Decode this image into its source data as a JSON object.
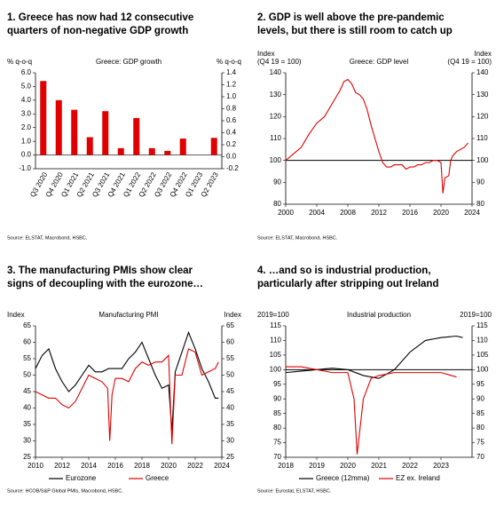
{
  "chart_data": [
    {
      "type": "bar",
      "title": [
        "1. Greece has now had 12 consecutive",
        "quarters of non-negative GDP growth"
      ],
      "plot_label": "Greece: GDP growth",
      "y_label": [
        "% q-o-q"
      ],
      "y2_label": [
        "% q-o-q"
      ],
      "categories": [
        "Q3 2020",
        "Q4 2020",
        "Q1 2021",
        "Q2 2021",
        "Q3 2021",
        "Q4 2021",
        "Q1 2022",
        "Q2 2022",
        "Q3 2022",
        "Q4 2022",
        "Q1 2023",
        "Q2 2023"
      ],
      "values": [
        5.4,
        4.0,
        3.3,
        1.3,
        3.2,
        0.5,
        2.7,
        0.5,
        0.3,
        1.2,
        0.0,
        1.25
      ],
      "color": "#e00000",
      "ylim": [
        -1,
        6
      ],
      "yticks": [
        {
          "value": -1,
          "label": "-1.0"
        },
        {
          "value": 0,
          "label": "0.0"
        },
        {
          "value": 1,
          "label": "1.0"
        },
        {
          "value": 2,
          "label": "2.0"
        },
        {
          "value": 3,
          "label": "3.0"
        },
        {
          "value": 4,
          "label": "4.0"
        },
        {
          "value": 5,
          "label": "5.0"
        },
        {
          "value": 6,
          "label": "6.0"
        }
      ],
      "y2lim": [
        -0.2,
        1.4
      ],
      "y2ticks": [
        -0.2,
        {
          "value": 0,
          "label": "0.0"
        },
        0.2,
        0.4,
        0.6,
        0.8,
        {
          "value": 1,
          "label": "1.0"
        },
        1.2,
        1.4
      ],
      "source": "Source: ELSTAT, Macrobond, HSBC."
    },
    {
      "type": "line",
      "title": [
        "2. GDP is well above the pre-pandemic",
        "levels, but there is still room to catch up"
      ],
      "plot_label": "Greece: GDP level",
      "y_label": [
        "Index",
        "(Q4 19 = 100)"
      ],
      "y2_label": [
        "Index",
        "(Q4 19 = 100)"
      ],
      "series": [
        {
          "color": "#e00000",
          "x": [
            2000,
            2001,
            2002,
            2003,
            2004,
            2005,
            2006,
            2007,
            2007.5,
            2008,
            2008.5,
            2009,
            2009.5,
            2010,
            2010.5,
            2011,
            2011.5,
            2012,
            2012.5,
            2013,
            2013.5,
            2014,
            2014.5,
            2015,
            2015.5,
            2016,
            2016.5,
            2017,
            2017.5,
            2018,
            2018.5,
            2019,
            2019.5,
            2020,
            2020.25,
            2020.5,
            2021,
            2021.25,
            2021.5,
            2022,
            2022.5,
            2023,
            2023.5
          ],
          "values": [
            100,
            103,
            106,
            112,
            117,
            120,
            126,
            132,
            136,
            137,
            135,
            131,
            130,
            128,
            123,
            116,
            110,
            104,
            99,
            97,
            97,
            98,
            98,
            98,
            96,
            97,
            97,
            98,
            98,
            99,
            99,
            100,
            100,
            99,
            85,
            92,
            93,
            100,
            102,
            104,
            105,
            106,
            108
          ]
        }
      ],
      "ref_line": 100,
      "xlim": [
        2000,
        2024
      ],
      "xticks": [
        2000,
        2004,
        2008,
        2012,
        2016,
        2020,
        2024
      ],
      "ylim": [
        80,
        140
      ],
      "yticks": [
        80,
        90,
        100,
        110,
        120,
        130,
        140
      ],
      "y2lim": [
        80,
        140
      ],
      "y2ticks": [
        80,
        90,
        100,
        110,
        120,
        130,
        140
      ],
      "source": "Source: ELSTAT, Macrobond, HSBC."
    },
    {
      "type": "line",
      "title": [
        "3. The manufacturing PMIs show clear",
        "signs of decoupling with the eurozone…"
      ],
      "plot_label": "Manufacturing PMI",
      "y_label": [
        "Index"
      ],
      "y2_label": [
        "Index"
      ],
      "series": [
        {
          "name": "Eurozone",
          "color": "#000000",
          "x": [
            2010,
            2010.5,
            2011,
            2011.5,
            2012,
            2012.5,
            2013,
            2013.5,
            2014,
            2014.5,
            2015,
            2015.5,
            2016,
            2016.5,
            2017,
            2017.5,
            2018,
            2018.5,
            2019,
            2019.5,
            2020,
            2020.25,
            2020.5,
            2021,
            2021.5,
            2022,
            2022.5,
            2023,
            2023.5,
            2023.75
          ],
          "values": [
            52,
            56,
            58,
            52,
            48,
            45,
            47,
            50,
            53,
            51,
            51,
            52,
            52,
            52,
            55,
            57,
            60,
            55,
            50,
            46,
            47,
            33,
            51,
            57,
            63,
            58,
            52,
            48,
            43,
            43
          ]
        },
        {
          "name": "Greece",
          "color": "#e00000",
          "x": [
            2010,
            2010.5,
            2011,
            2011.5,
            2012,
            2012.5,
            2013,
            2013.5,
            2014,
            2014.5,
            2015,
            2015.42,
            2015.58,
            2015.75,
            2016,
            2016.5,
            2017,
            2017.5,
            2018,
            2018.5,
            2019,
            2019.5,
            2020,
            2020.25,
            2020.5,
            2021,
            2021.5,
            2022,
            2022.5,
            2023,
            2023.5,
            2023.75
          ],
          "values": [
            45,
            44,
            43,
            43,
            41,
            40,
            42,
            46,
            50,
            49,
            48,
            46,
            30,
            44,
            49,
            49,
            48,
            52,
            54,
            53,
            54,
            54,
            56,
            29,
            50,
            50,
            58,
            57,
            50,
            51,
            52,
            54
          ]
        }
      ],
      "xlim": [
        2010,
        2024
      ],
      "xticks": [
        2010,
        2012,
        2014,
        2016,
        2018,
        2020,
        2022,
        2024
      ],
      "ylim": [
        25,
        65
      ],
      "yticks": [
        25,
        30,
        35,
        40,
        45,
        50,
        55,
        60,
        65
      ],
      "y2lim": [
        25,
        65
      ],
      "y2ticks": [
        25,
        30,
        35,
        40,
        45,
        50,
        55,
        60,
        65
      ],
      "source": "Source: HCOB/S&P Global PMIs, Macrobond, HSBC."
    },
    {
      "type": "line",
      "title": [
        "4. …and so is industrial production,",
        "particularly after stripping out Ireland"
      ],
      "plot_label": "Industrial production",
      "y_label": [
        "2019=100"
      ],
      "y2_label": [
        "2019=100"
      ],
      "series": [
        {
          "name": "Greece (12mma)",
          "color": "#000000",
          "x": [
            2018,
            2018.5,
            2019,
            2019.5,
            2020,
            2020.5,
            2021,
            2021.5,
            2022,
            2022.5,
            2023,
            2023.5,
            2023.7
          ],
          "values": [
            99,
            99.5,
            100,
            100.5,
            100,
            98,
            97,
            100,
            106,
            110,
            111,
            111.5,
            111
          ]
        },
        {
          "name": "EZ ex. Ireland",
          "color": "#e00000",
          "x": [
            2018,
            2018.5,
            2019,
            2019.5,
            2020,
            2020.2,
            2020.3,
            2020.5,
            2020.75,
            2021,
            2021.5,
            2022,
            2022.5,
            2023,
            2023.5
          ],
          "values": [
            101,
            101,
            100,
            99,
            99,
            90,
            71,
            90,
            97,
            98,
            99,
            99,
            99,
            99,
            97.5
          ]
        }
      ],
      "ref_line": 100,
      "xlim": [
        2018,
        2024
      ],
      "xticks": [
        2018,
        2019,
        2020,
        2021,
        2022,
        2023
      ],
      "ylim": [
        70,
        115
      ],
      "yticks": [
        70,
        75,
        80,
        85,
        90,
        95,
        100,
        105,
        110,
        115
      ],
      "y2lim": [
        70,
        115
      ],
      "y2ticks": [
        70,
        75,
        80,
        85,
        90,
        95,
        100,
        105,
        110,
        115
      ],
      "source": "Source: Eurostat, ELSTAT, HSBC."
    }
  ]
}
